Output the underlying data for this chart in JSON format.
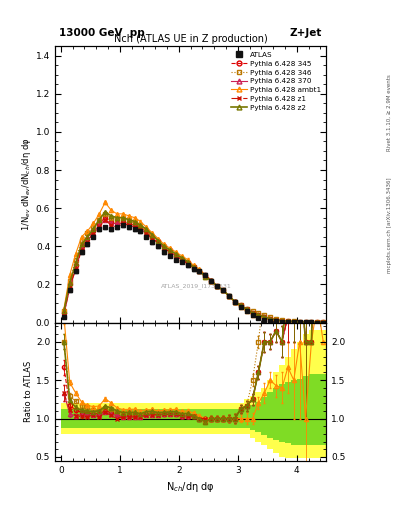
{
  "title_top": "13000 GeV  pp",
  "title_right": "Z+Jet",
  "plot_title": "Nch (ATLAS UE in Z production)",
  "ylabel_main": "1/N$_{ev}$ dN$_{ev}$/dN$_{ch}$/dη dφ",
  "ylabel_ratio": "Ratio to ATLAS",
  "xlabel": "N$_{ch}$/dη dφ",
  "right_label_top": "Rivet 3.1.10, ≥ 2.9M events",
  "right_label_bot": "mcplots.cern.ch [arXiv:1306.3436]",
  "watermark": "ATLAS_2019_I1736531",
  "ylim_main": [
    0.0,
    1.45
  ],
  "ylim_ratio": [
    0.45,
    2.25
  ],
  "xlim": [
    -0.1,
    4.5
  ],
  "yticks_main": [
    0.0,
    0.2,
    0.4,
    0.6,
    0.8,
    1.0,
    1.2,
    1.4
  ],
  "yticks_ratio": [
    0.5,
    1.0,
    1.5,
    2.0
  ],
  "background_color": "#ffffff",
  "green_band_color": "#00bb00",
  "yellow_band_color": "#ffff00",
  "green_band_alpha": 0.5,
  "yellow_band_alpha": 0.7,
  "series": [
    {
      "label": "ATLAS",
      "color": "#111111",
      "marker": "s",
      "markersize": 3.5,
      "linestyle": "none",
      "fillstyle": "full",
      "linewidth": 0.8,
      "x": [
        0.05,
        0.15,
        0.25,
        0.35,
        0.45,
        0.55,
        0.65,
        0.75,
        0.85,
        0.95,
        1.05,
        1.15,
        1.25,
        1.35,
        1.45,
        1.55,
        1.65,
        1.75,
        1.85,
        1.95,
        2.05,
        2.15,
        2.25,
        2.35,
        2.45,
        2.55,
        2.65,
        2.75,
        2.85,
        2.95,
        3.05,
        3.15,
        3.25,
        3.35,
        3.45,
        3.55,
        3.65,
        3.75,
        3.85,
        3.95,
        4.05,
        4.15,
        4.25,
        4.35,
        4.45
      ],
      "y": [
        0.03,
        0.17,
        0.27,
        0.37,
        0.41,
        0.45,
        0.49,
        0.5,
        0.49,
        0.5,
        0.51,
        0.5,
        0.49,
        0.48,
        0.45,
        0.42,
        0.4,
        0.37,
        0.35,
        0.33,
        0.32,
        0.3,
        0.28,
        0.27,
        0.25,
        0.22,
        0.19,
        0.17,
        0.14,
        0.11,
        0.08,
        0.06,
        0.04,
        0.025,
        0.015,
        0.01,
        0.007,
        0.005,
        0.003,
        0.002,
        0.001,
        0.001,
        0.0005,
        0.0002,
        0.0001
      ],
      "yerr": [
        0.004,
        0.008,
        0.008,
        0.008,
        0.008,
        0.008,
        0.008,
        0.008,
        0.008,
        0.008,
        0.008,
        0.008,
        0.008,
        0.008,
        0.008,
        0.008,
        0.008,
        0.008,
        0.008,
        0.008,
        0.008,
        0.008,
        0.008,
        0.008,
        0.008,
        0.008,
        0.008,
        0.008,
        0.008,
        0.008,
        0.005,
        0.004,
        0.003,
        0.002,
        0.002,
        0.001,
        0.001,
        0.001,
        0.001,
        0.001,
        0.001,
        0.001,
        0.0,
        0.0,
        0.0
      ]
    },
    {
      "label": "Pythia 6.428 345",
      "color": "#dd0000",
      "marker": "o",
      "markersize": 3,
      "linestyle": "--",
      "fillstyle": "none",
      "linewidth": 0.8,
      "x": [
        0.05,
        0.15,
        0.25,
        0.35,
        0.45,
        0.55,
        0.65,
        0.75,
        0.85,
        0.95,
        1.05,
        1.15,
        1.25,
        1.35,
        1.45,
        1.55,
        1.65,
        1.75,
        1.85,
        1.95,
        2.05,
        2.15,
        2.25,
        2.35,
        2.45,
        2.55,
        2.65,
        2.75,
        2.85,
        2.95,
        3.05,
        3.15,
        3.25,
        3.35,
        3.45,
        3.55,
        3.65,
        3.75,
        3.85,
        3.95,
        4.05,
        4.15,
        4.25,
        4.35,
        4.45
      ],
      "y": [
        0.05,
        0.2,
        0.3,
        0.4,
        0.44,
        0.48,
        0.52,
        0.55,
        0.53,
        0.52,
        0.53,
        0.52,
        0.51,
        0.5,
        0.48,
        0.45,
        0.43,
        0.4,
        0.38,
        0.35,
        0.33,
        0.31,
        0.29,
        0.27,
        0.25,
        0.22,
        0.19,
        0.17,
        0.14,
        0.11,
        0.09,
        0.07,
        0.05,
        0.04,
        0.03,
        0.02,
        0.015,
        0.01,
        0.007,
        0.005,
        0.003,
        0.002,
        0.001,
        0.001,
        0.0005
      ],
      "yerr": [
        0.003,
        0.006,
        0.006,
        0.006,
        0.006,
        0.006,
        0.006,
        0.006,
        0.006,
        0.006,
        0.006,
        0.006,
        0.006,
        0.006,
        0.006,
        0.006,
        0.006,
        0.006,
        0.006,
        0.006,
        0.006,
        0.006,
        0.006,
        0.006,
        0.006,
        0.006,
        0.006,
        0.006,
        0.006,
        0.006,
        0.004,
        0.004,
        0.003,
        0.002,
        0.002,
        0.001,
        0.001,
        0.001,
        0.001,
        0.001,
        0.001,
        0.001,
        0.0,
        0.0,
        0.0
      ]
    },
    {
      "label": "Pythia 6.428 346",
      "color": "#bb7700",
      "marker": "s",
      "markersize": 3,
      "linestyle": ":",
      "fillstyle": "none",
      "linewidth": 0.8,
      "x": [
        0.05,
        0.15,
        0.25,
        0.35,
        0.45,
        0.55,
        0.65,
        0.75,
        0.85,
        0.95,
        1.05,
        1.15,
        1.25,
        1.35,
        1.45,
        1.55,
        1.65,
        1.75,
        1.85,
        1.95,
        2.05,
        2.15,
        2.25,
        2.35,
        2.45,
        2.55,
        2.65,
        2.75,
        2.85,
        2.95,
        3.05,
        3.15,
        3.25,
        3.35,
        3.45,
        3.55,
        3.65,
        3.75,
        3.85,
        3.95,
        4.05,
        4.15,
        4.25,
        4.35,
        4.45
      ],
      "y": [
        0.06,
        0.22,
        0.33,
        0.43,
        0.47,
        0.5,
        0.54,
        0.57,
        0.55,
        0.54,
        0.55,
        0.54,
        0.52,
        0.5,
        0.48,
        0.45,
        0.42,
        0.39,
        0.37,
        0.35,
        0.33,
        0.31,
        0.29,
        0.27,
        0.24,
        0.22,
        0.19,
        0.17,
        0.14,
        0.11,
        0.09,
        0.07,
        0.06,
        0.05,
        0.04,
        0.03,
        0.02,
        0.015,
        0.01,
        0.008,
        0.005,
        0.003,
        0.002,
        0.001,
        0.0005
      ],
      "yerr": [
        0.003,
        0.006,
        0.006,
        0.006,
        0.006,
        0.006,
        0.006,
        0.006,
        0.006,
        0.006,
        0.006,
        0.006,
        0.006,
        0.006,
        0.006,
        0.006,
        0.006,
        0.006,
        0.006,
        0.006,
        0.006,
        0.006,
        0.006,
        0.006,
        0.006,
        0.006,
        0.006,
        0.006,
        0.006,
        0.006,
        0.004,
        0.004,
        0.003,
        0.002,
        0.002,
        0.001,
        0.001,
        0.001,
        0.001,
        0.001,
        0.001,
        0.001,
        0.0,
        0.0,
        0.0
      ]
    },
    {
      "label": "Pythia 6.428 370",
      "color": "#cc2255",
      "marker": "^",
      "markersize": 3,
      "linestyle": "-",
      "fillstyle": "none",
      "linewidth": 0.8,
      "x": [
        0.05,
        0.15,
        0.25,
        0.35,
        0.45,
        0.55,
        0.65,
        0.75,
        0.85,
        0.95,
        1.05,
        1.15,
        1.25,
        1.35,
        1.45,
        1.55,
        1.65,
        1.75,
        1.85,
        1.95,
        2.05,
        2.15,
        2.25,
        2.35,
        2.45,
        2.55,
        2.65,
        2.75,
        2.85,
        2.95,
        3.05,
        3.15,
        3.25,
        3.35,
        3.45,
        3.55,
        3.65,
        3.75,
        3.85,
        3.95,
        4.05,
        4.15,
        4.25,
        4.35,
        4.45
      ],
      "y": [
        0.04,
        0.18,
        0.28,
        0.39,
        0.43,
        0.47,
        0.51,
        0.54,
        0.52,
        0.52,
        0.52,
        0.51,
        0.5,
        0.49,
        0.47,
        0.44,
        0.42,
        0.39,
        0.37,
        0.35,
        0.33,
        0.31,
        0.29,
        0.27,
        0.25,
        0.22,
        0.19,
        0.17,
        0.14,
        0.11,
        0.09,
        0.07,
        0.05,
        0.04,
        0.03,
        0.02,
        0.015,
        0.01,
        0.007,
        0.005,
        0.003,
        0.002,
        0.001,
        0.001,
        0.0005
      ],
      "yerr": [
        0.003,
        0.006,
        0.006,
        0.006,
        0.006,
        0.006,
        0.006,
        0.006,
        0.006,
        0.006,
        0.006,
        0.006,
        0.006,
        0.006,
        0.006,
        0.006,
        0.006,
        0.006,
        0.006,
        0.006,
        0.006,
        0.006,
        0.006,
        0.006,
        0.006,
        0.006,
        0.006,
        0.006,
        0.006,
        0.006,
        0.004,
        0.004,
        0.003,
        0.002,
        0.002,
        0.001,
        0.001,
        0.001,
        0.001,
        0.001,
        0.001,
        0.001,
        0.0,
        0.0,
        0.0
      ]
    },
    {
      "label": "Pythia 6.428 ambt1",
      "color": "#ff8800",
      "marker": "^",
      "markersize": 3,
      "linestyle": "-",
      "fillstyle": "none",
      "linewidth": 0.8,
      "x": [
        0.05,
        0.15,
        0.25,
        0.35,
        0.45,
        0.55,
        0.65,
        0.75,
        0.85,
        0.95,
        1.05,
        1.15,
        1.25,
        1.35,
        1.45,
        1.55,
        1.65,
        1.75,
        1.85,
        1.95,
        2.05,
        2.15,
        2.25,
        2.35,
        2.45,
        2.55,
        2.65,
        2.75,
        2.85,
        2.95,
        3.05,
        3.15,
        3.25,
        3.35,
        3.45,
        3.55,
        3.65,
        3.75,
        3.85,
        3.95,
        4.05,
        4.15,
        4.25,
        4.35,
        4.45
      ],
      "y": [
        0.07,
        0.25,
        0.36,
        0.45,
        0.48,
        0.52,
        0.57,
        0.63,
        0.59,
        0.57,
        0.57,
        0.56,
        0.55,
        0.53,
        0.5,
        0.47,
        0.44,
        0.41,
        0.39,
        0.37,
        0.35,
        0.33,
        0.3,
        0.28,
        0.25,
        0.22,
        0.19,
        0.17,
        0.14,
        0.11,
        0.08,
        0.06,
        0.04,
        0.03,
        0.02,
        0.015,
        0.01,
        0.007,
        0.005,
        0.003,
        0.002,
        0.001,
        0.001,
        0.0005,
        0.0002
      ],
      "yerr": [
        0.003,
        0.006,
        0.006,
        0.006,
        0.006,
        0.006,
        0.006,
        0.008,
        0.008,
        0.006,
        0.006,
        0.006,
        0.006,
        0.006,
        0.006,
        0.006,
        0.006,
        0.006,
        0.006,
        0.006,
        0.006,
        0.006,
        0.006,
        0.006,
        0.006,
        0.006,
        0.006,
        0.006,
        0.006,
        0.006,
        0.004,
        0.004,
        0.003,
        0.002,
        0.002,
        0.001,
        0.001,
        0.001,
        0.001,
        0.001,
        0.001,
        0.001,
        0.0,
        0.0,
        0.0
      ]
    },
    {
      "label": "Pythia 6.428 z1",
      "color": "#cc1100",
      "marker": "x",
      "markersize": 3,
      "linestyle": "-.",
      "fillstyle": "full",
      "linewidth": 0.8,
      "x": [
        0.05,
        0.15,
        0.25,
        0.35,
        0.45,
        0.55,
        0.65,
        0.75,
        0.85,
        0.95,
        1.05,
        1.15,
        1.25,
        1.35,
        1.45,
        1.55,
        1.65,
        1.75,
        1.85,
        1.95,
        2.05,
        2.15,
        2.25,
        2.35,
        2.45,
        2.55,
        2.65,
        2.75,
        2.85,
        2.95,
        3.05,
        3.15,
        3.25,
        3.35,
        3.45,
        3.55,
        3.65,
        3.75,
        3.85,
        3.95,
        4.05,
        4.15,
        4.25,
        4.35,
        4.45
      ],
      "y": [
        0.04,
        0.19,
        0.28,
        0.38,
        0.42,
        0.47,
        0.5,
        0.54,
        0.51,
        0.5,
        0.52,
        0.51,
        0.5,
        0.49,
        0.47,
        0.44,
        0.42,
        0.39,
        0.37,
        0.35,
        0.33,
        0.31,
        0.29,
        0.27,
        0.25,
        0.22,
        0.19,
        0.17,
        0.14,
        0.11,
        0.09,
        0.07,
        0.05,
        0.04,
        0.03,
        0.02,
        0.015,
        0.01,
        0.007,
        0.005,
        0.003,
        0.002,
        0.001,
        0.001,
        0.0005
      ],
      "yerr": [
        0.003,
        0.006,
        0.006,
        0.006,
        0.006,
        0.006,
        0.006,
        0.006,
        0.006,
        0.006,
        0.006,
        0.006,
        0.006,
        0.006,
        0.006,
        0.006,
        0.006,
        0.006,
        0.006,
        0.006,
        0.006,
        0.006,
        0.006,
        0.006,
        0.006,
        0.006,
        0.006,
        0.006,
        0.006,
        0.006,
        0.004,
        0.004,
        0.003,
        0.002,
        0.002,
        0.001,
        0.001,
        0.001,
        0.001,
        0.001,
        0.001,
        0.001,
        0.0,
        0.0,
        0.0
      ]
    },
    {
      "label": "Pythia 6.428 z2",
      "color": "#777700",
      "marker": "^",
      "markersize": 3,
      "linestyle": "-",
      "fillstyle": "none",
      "linewidth": 1.2,
      "x": [
        0.05,
        0.15,
        0.25,
        0.35,
        0.45,
        0.55,
        0.65,
        0.75,
        0.85,
        0.95,
        1.05,
        1.15,
        1.25,
        1.35,
        1.45,
        1.55,
        1.65,
        1.75,
        1.85,
        1.95,
        2.05,
        2.15,
        2.25,
        2.35,
        2.45,
        2.55,
        2.65,
        2.75,
        2.85,
        2.95,
        3.05,
        3.15,
        3.25,
        3.35,
        3.45,
        3.55,
        3.65,
        3.75,
        3.85,
        3.95,
        4.05,
        4.15,
        4.25,
        4.35,
        4.45
      ],
      "y": [
        0.06,
        0.21,
        0.31,
        0.41,
        0.45,
        0.49,
        0.54,
        0.58,
        0.56,
        0.55,
        0.55,
        0.54,
        0.53,
        0.51,
        0.49,
        0.46,
        0.43,
        0.4,
        0.38,
        0.36,
        0.34,
        0.32,
        0.29,
        0.27,
        0.24,
        0.22,
        0.19,
        0.17,
        0.14,
        0.11,
        0.09,
        0.07,
        0.05,
        0.04,
        0.03,
        0.02,
        0.015,
        0.01,
        0.008,
        0.005,
        0.003,
        0.002,
        0.001,
        0.001,
        0.0005
      ],
      "yerr": [
        0.003,
        0.006,
        0.006,
        0.006,
        0.006,
        0.006,
        0.006,
        0.006,
        0.006,
        0.006,
        0.006,
        0.006,
        0.006,
        0.006,
        0.006,
        0.006,
        0.006,
        0.006,
        0.006,
        0.006,
        0.006,
        0.006,
        0.006,
        0.006,
        0.006,
        0.006,
        0.006,
        0.006,
        0.006,
        0.006,
        0.004,
        0.004,
        0.003,
        0.002,
        0.002,
        0.001,
        0.001,
        0.001,
        0.001,
        0.001,
        0.001,
        0.001,
        0.0,
        0.0,
        0.0
      ]
    }
  ],
  "band_x_edges": [
    0.0,
    0.1,
    0.2,
    0.3,
    0.4,
    0.5,
    0.6,
    0.7,
    0.8,
    0.9,
    1.0,
    1.1,
    1.2,
    1.3,
    1.4,
    1.5,
    1.6,
    1.7,
    1.8,
    1.9,
    2.0,
    2.1,
    2.2,
    2.3,
    2.4,
    2.5,
    2.6,
    2.7,
    2.8,
    2.9,
    3.0,
    3.1,
    3.2,
    3.3,
    3.4,
    3.5,
    3.6,
    3.7,
    3.8,
    3.9,
    4.0,
    4.1,
    4.2,
    4.3,
    4.4,
    4.5
  ],
  "ratio_yellow_low": [
    0.8,
    0.8,
    0.8,
    0.8,
    0.8,
    0.8,
    0.8,
    0.8,
    0.8,
    0.8,
    0.8,
    0.8,
    0.8,
    0.8,
    0.8,
    0.8,
    0.8,
    0.8,
    0.8,
    0.8,
    0.8,
    0.8,
    0.8,
    0.8,
    0.8,
    0.8,
    0.8,
    0.8,
    0.8,
    0.8,
    0.8,
    0.8,
    0.75,
    0.7,
    0.65,
    0.6,
    0.55,
    0.5,
    0.48,
    0.48,
    0.48,
    0.48,
    0.48,
    0.48,
    0.48,
    0.48
  ],
  "ratio_yellow_high": [
    1.2,
    1.2,
    1.2,
    1.2,
    1.2,
    1.2,
    1.2,
    1.2,
    1.2,
    1.2,
    1.2,
    1.2,
    1.2,
    1.2,
    1.2,
    1.2,
    1.2,
    1.2,
    1.2,
    1.2,
    1.2,
    1.2,
    1.2,
    1.2,
    1.2,
    1.2,
    1.2,
    1.2,
    1.2,
    1.2,
    1.2,
    1.25,
    1.3,
    1.35,
    1.4,
    1.5,
    1.6,
    1.7,
    1.8,
    1.9,
    2.0,
    2.1,
    2.15,
    2.15,
    2.15,
    2.15
  ],
  "ratio_green_low": [
    0.88,
    0.88,
    0.88,
    0.88,
    0.88,
    0.88,
    0.88,
    0.88,
    0.88,
    0.88,
    0.88,
    0.88,
    0.88,
    0.88,
    0.88,
    0.88,
    0.88,
    0.88,
    0.88,
    0.88,
    0.88,
    0.88,
    0.88,
    0.88,
    0.88,
    0.88,
    0.88,
    0.88,
    0.88,
    0.88,
    0.88,
    0.88,
    0.85,
    0.82,
    0.78,
    0.75,
    0.72,
    0.7,
    0.68,
    0.65,
    0.65,
    0.65,
    0.65,
    0.65,
    0.65,
    0.65
  ],
  "ratio_green_high": [
    1.12,
    1.12,
    1.12,
    1.12,
    1.12,
    1.12,
    1.12,
    1.12,
    1.12,
    1.12,
    1.12,
    1.12,
    1.12,
    1.12,
    1.12,
    1.12,
    1.12,
    1.12,
    1.12,
    1.12,
    1.12,
    1.12,
    1.12,
    1.12,
    1.12,
    1.12,
    1.12,
    1.12,
    1.12,
    1.12,
    1.12,
    1.15,
    1.18,
    1.22,
    1.28,
    1.35,
    1.4,
    1.45,
    1.48,
    1.5,
    1.52,
    1.55,
    1.58,
    1.58,
    1.58,
    1.58
  ]
}
